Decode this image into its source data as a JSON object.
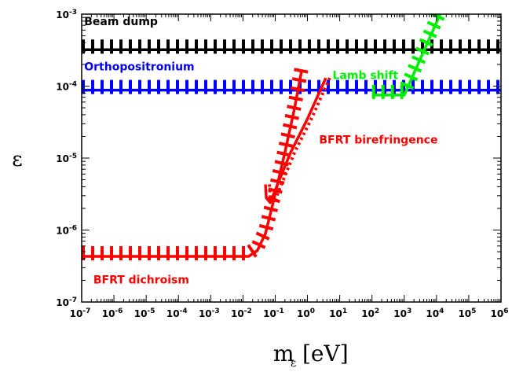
{
  "chart_data": {
    "type": "line",
    "xscale": "log",
    "yscale": "log",
    "xlim": [
      1e-07,
      1000000.0
    ],
    "ylim": [
      1e-07,
      0.001
    ],
    "xlabel": "m",
    "xlabel_sub": "ε",
    "xlabel_unit": "[eV]",
    "ylabel": "ε",
    "xticks": [
      {
        "base": "10",
        "exp": "-7",
        "value": 1e-07
      },
      {
        "base": "10",
        "exp": "-6",
        "value": 1e-06
      },
      {
        "base": "10",
        "exp": "-5",
        "value": 1e-05
      },
      {
        "base": "10",
        "exp": "-4",
        "value": 0.0001
      },
      {
        "base": "10",
        "exp": "-3",
        "value": 0.001
      },
      {
        "base": "10",
        "exp": "-2",
        "value": 0.01
      },
      {
        "base": "10",
        "exp": "-1",
        "value": 0.1
      },
      {
        "base": "10",
        "exp": "0",
        "value": 1
      },
      {
        "base": "10",
        "exp": "1",
        "value": 10
      },
      {
        "base": "10",
        "exp": "2",
        "value": 100
      },
      {
        "base": "10",
        "exp": "3",
        "value": 1000
      },
      {
        "base": "10",
        "exp": "4",
        "value": 10000.0
      },
      {
        "base": "10",
        "exp": "5",
        "value": 100000.0
      },
      {
        "base": "10",
        "exp": "6",
        "value": 1000000.0
      }
    ],
    "yticks": [
      {
        "base": "10",
        "exp": "-7",
        "value": 1e-07
      },
      {
        "base": "10",
        "exp": "-6",
        "value": 1e-06
      },
      {
        "base": "10",
        "exp": "-5",
        "value": 1e-05
      },
      {
        "base": "10",
        "exp": "-4",
        "value": 0.0001
      },
      {
        "base": "10",
        "exp": "-3",
        "value": 0.001
      }
    ],
    "series": [
      {
        "name": "Beam dump",
        "color": "#000000",
        "hatch": "down",
        "points": [
          [
            1e-07,
            0.00032
          ],
          [
            1000000.0,
            0.00032
          ]
        ]
      },
      {
        "name": "Orthopositronium",
        "color": "#0000ff",
        "hatch": "down",
        "points": [
          [
            1e-07,
            8.8e-05
          ],
          [
            1000000.0,
            8.8e-05
          ]
        ]
      },
      {
        "name": "Lamb shift",
        "color": "#00ee00",
        "hatch": "down",
        "points": [
          [
            100,
            7.5e-05
          ],
          [
            1000,
            7.5e-05
          ],
          [
            13000.0,
            0.001
          ]
        ]
      },
      {
        "name": "BFRT dichroism",
        "color": "#ff0000",
        "hatch": "down",
        "points": [
          [
            1e-07,
            4.3e-07
          ],
          [
            0.015,
            4.3e-07
          ],
          [
            0.028,
            5.2e-07
          ],
          [
            0.05,
            9e-07
          ],
          [
            0.09,
            2.6e-06
          ],
          [
            0.2,
            1.2e-05
          ],
          [
            0.4,
            5e-05
          ],
          [
            0.65,
            0.00016
          ]
        ]
      },
      {
        "name": "BFRT birefringence",
        "color": "#ff0000",
        "hatch": "right",
        "points": [
          [
            0.05,
            4.3e-06
          ],
          [
            0.053,
            2.8e-06
          ],
          [
            0.07,
            2.4e-06
          ],
          [
            0.1,
            3.6e-06
          ],
          [
            0.3,
            1.2e-05
          ],
          [
            1,
            3.5e-05
          ],
          [
            3.7,
            0.00013
          ]
        ]
      }
    ]
  }
}
